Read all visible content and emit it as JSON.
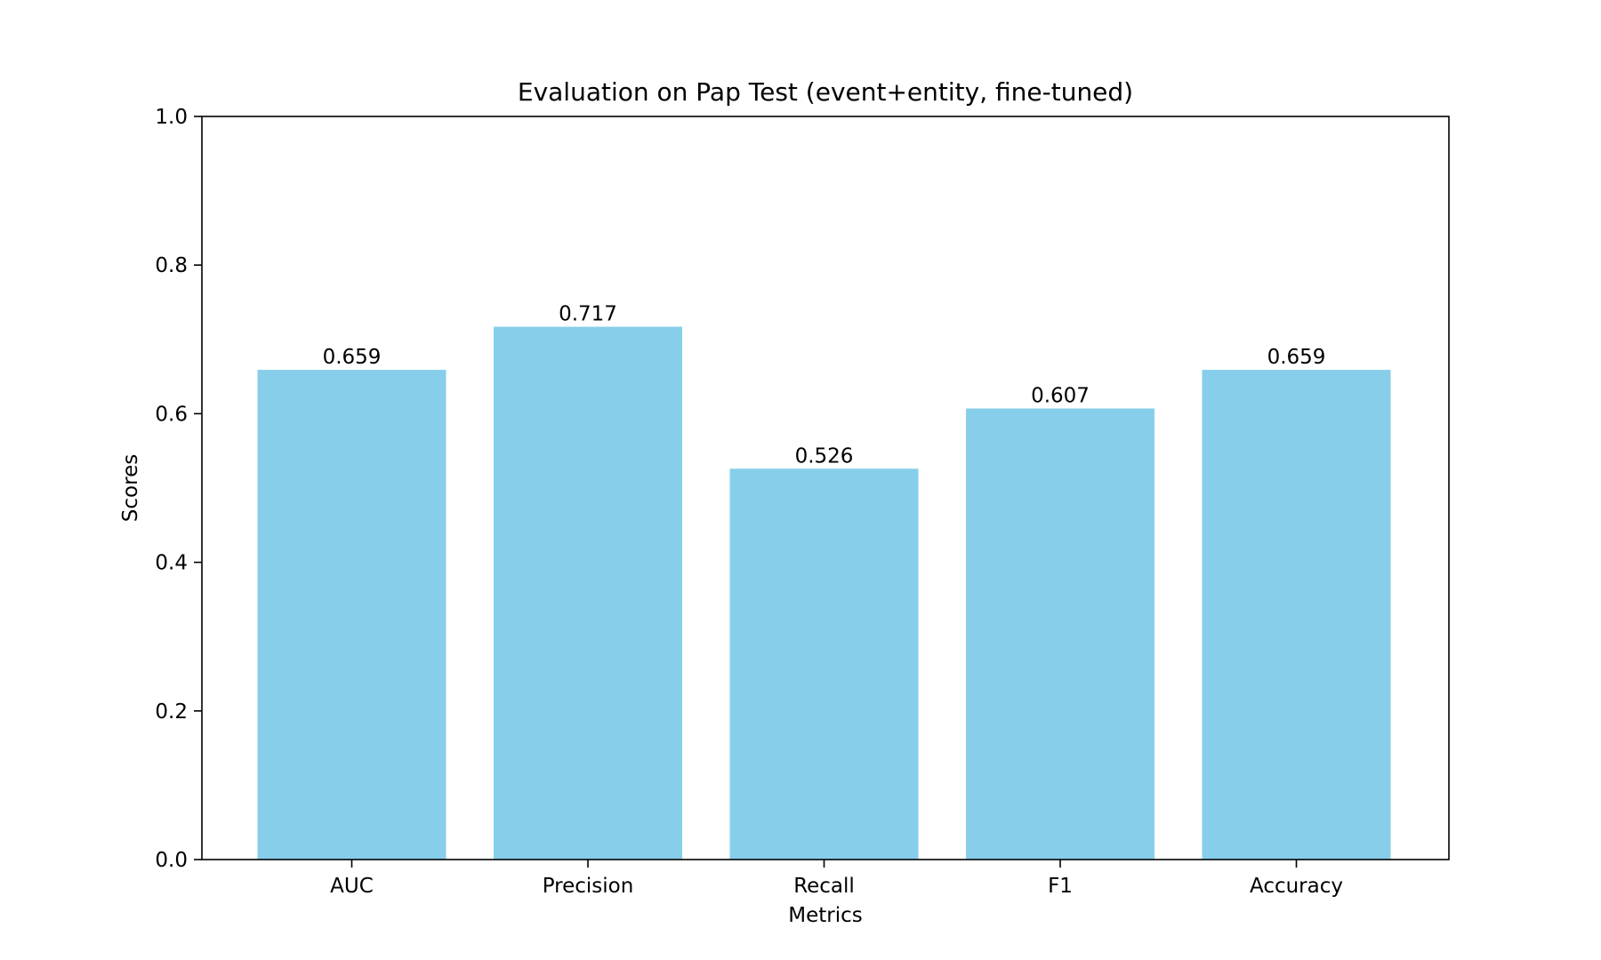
{
  "chart_data": {
    "type": "bar",
    "title": "Evaluation on Pap Test (event+entity, fine-tuned)",
    "xlabel": "Metrics",
    "ylabel": "Scores",
    "categories": [
      "AUC",
      "Precision",
      "Recall",
      "F1",
      "Accuracy"
    ],
    "values": [
      0.659,
      0.717,
      0.526,
      0.607,
      0.659
    ],
    "data_labels": [
      "0.659",
      "0.717",
      "0.526",
      "0.607",
      "0.659"
    ],
    "ylim": [
      0,
      1.0
    ],
    "yticks": [
      0.0,
      0.2,
      0.4,
      0.6,
      0.8,
      1.0
    ],
    "ytick_labels": [
      "0.0",
      "0.2",
      "0.4",
      "0.6",
      "0.8",
      "1.0"
    ],
    "bar_color": "#87CEEB",
    "grid": false,
    "legend": "none"
  }
}
